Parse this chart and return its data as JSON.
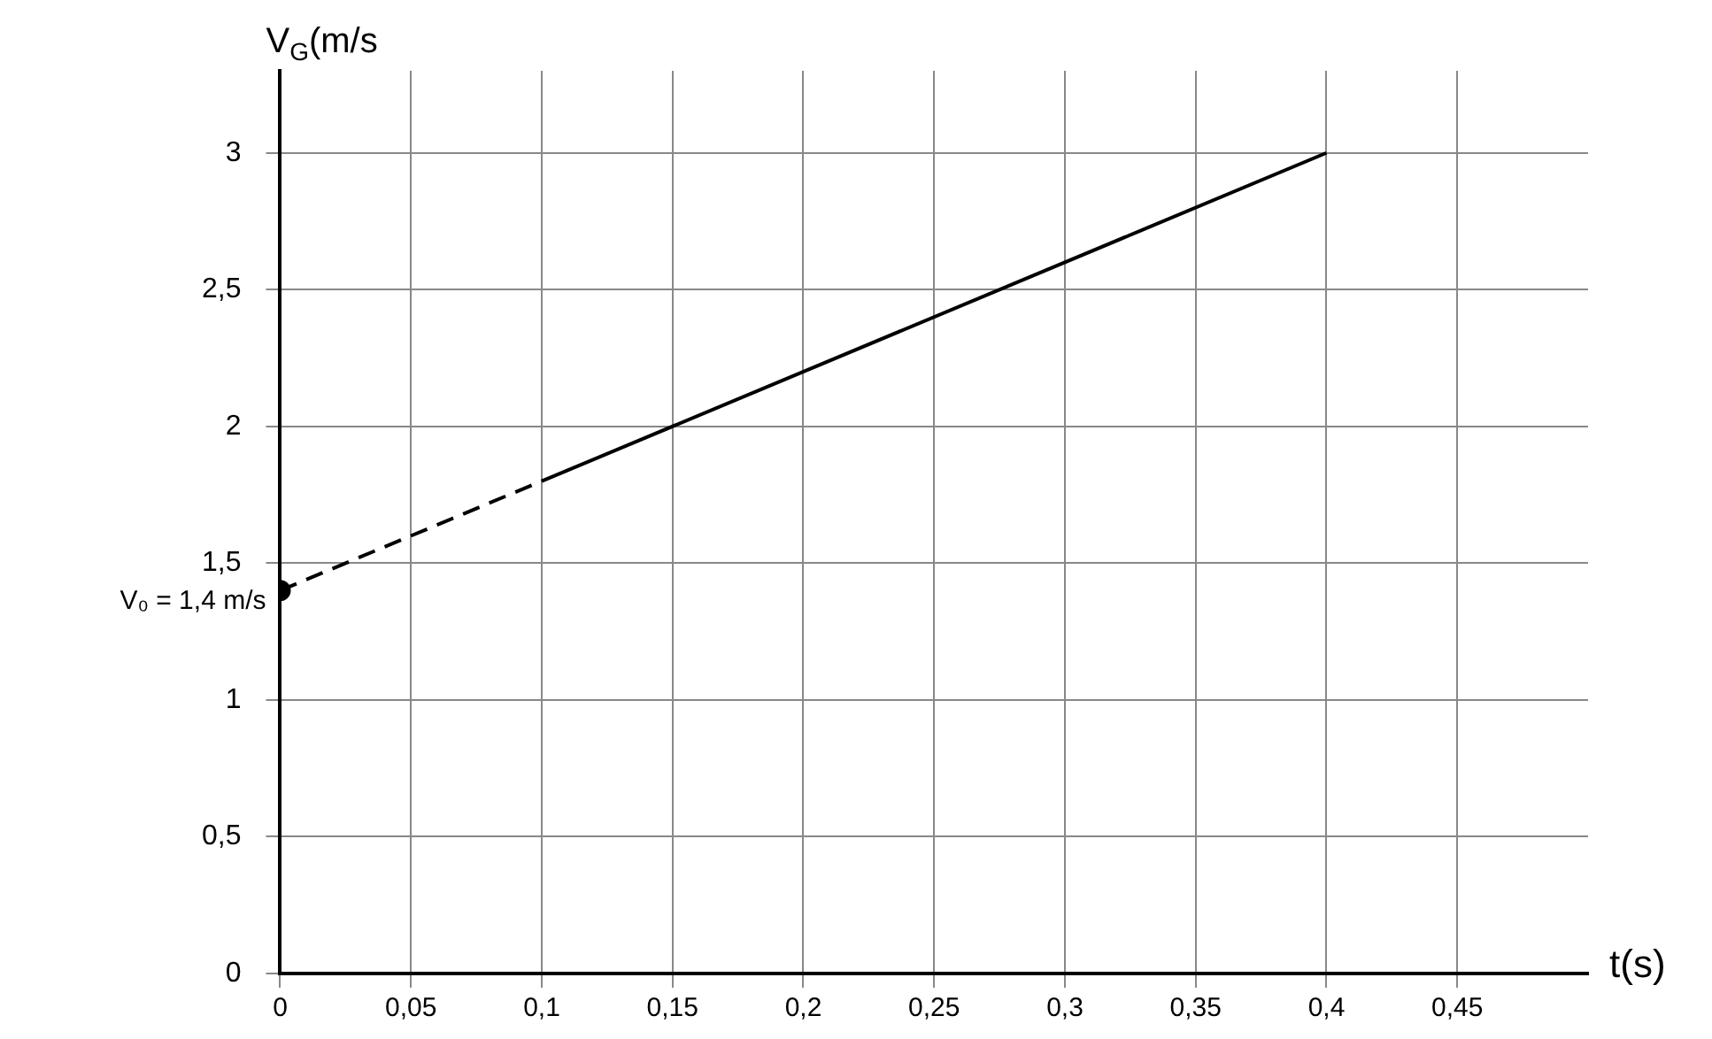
{
  "chart_data": {
    "type": "line",
    "ylabel": "V$_{G}$(m/s",
    "xlabel": "t(s)",
    "xlim": [
      0,
      0.5
    ],
    "ylim": [
      0,
      3.3
    ],
    "xticks": [
      0,
      {
        "value": 0.05,
        "label": "0,05"
      },
      {
        "value": 0.1,
        "label": "0,1"
      },
      {
        "value": 0.15,
        "label": "0,15"
      },
      {
        "value": 0.2,
        "label": "0,2"
      },
      {
        "value": 0.25,
        "label": "0,25"
      },
      {
        "value": 0.3,
        "label": "0,3"
      },
      {
        "value": 0.35,
        "label": "0,35"
      },
      {
        "value": 0.4,
        "label": "0,4"
      },
      {
        "value": 0.45,
        "label": "0,45"
      }
    ],
    "yticks": [
      0,
      {
        "value": 0.5,
        "label": "0,5"
      },
      1,
      {
        "value": 1.5,
        "label": "1,5"
      },
      2,
      {
        "value": 2.5,
        "label": "2,5"
      },
      3
    ],
    "series": [
      {
        "color": "#000000",
        "x": [
          0,
          0.1
        ],
        "values": [
          1.4,
          1.8
        ],
        "line_style": "dashed",
        "marker": "none"
      },
      {
        "color": "#000000",
        "x": [
          0.1,
          0.4
        ],
        "values": [
          1.8,
          3.0
        ],
        "line_style": "solid",
        "marker": "none"
      },
      {
        "type": "scatter",
        "color": "#000000",
        "x": [
          0
        ],
        "values": [
          1.4
        ],
        "marker": "circle"
      }
    ],
    "annotations": [
      {
        "text": "V₀ = 1,4 m/s",
        "x": 0,
        "y": 1.4
      }
    ],
    "grid": true,
    "legend": false
  }
}
